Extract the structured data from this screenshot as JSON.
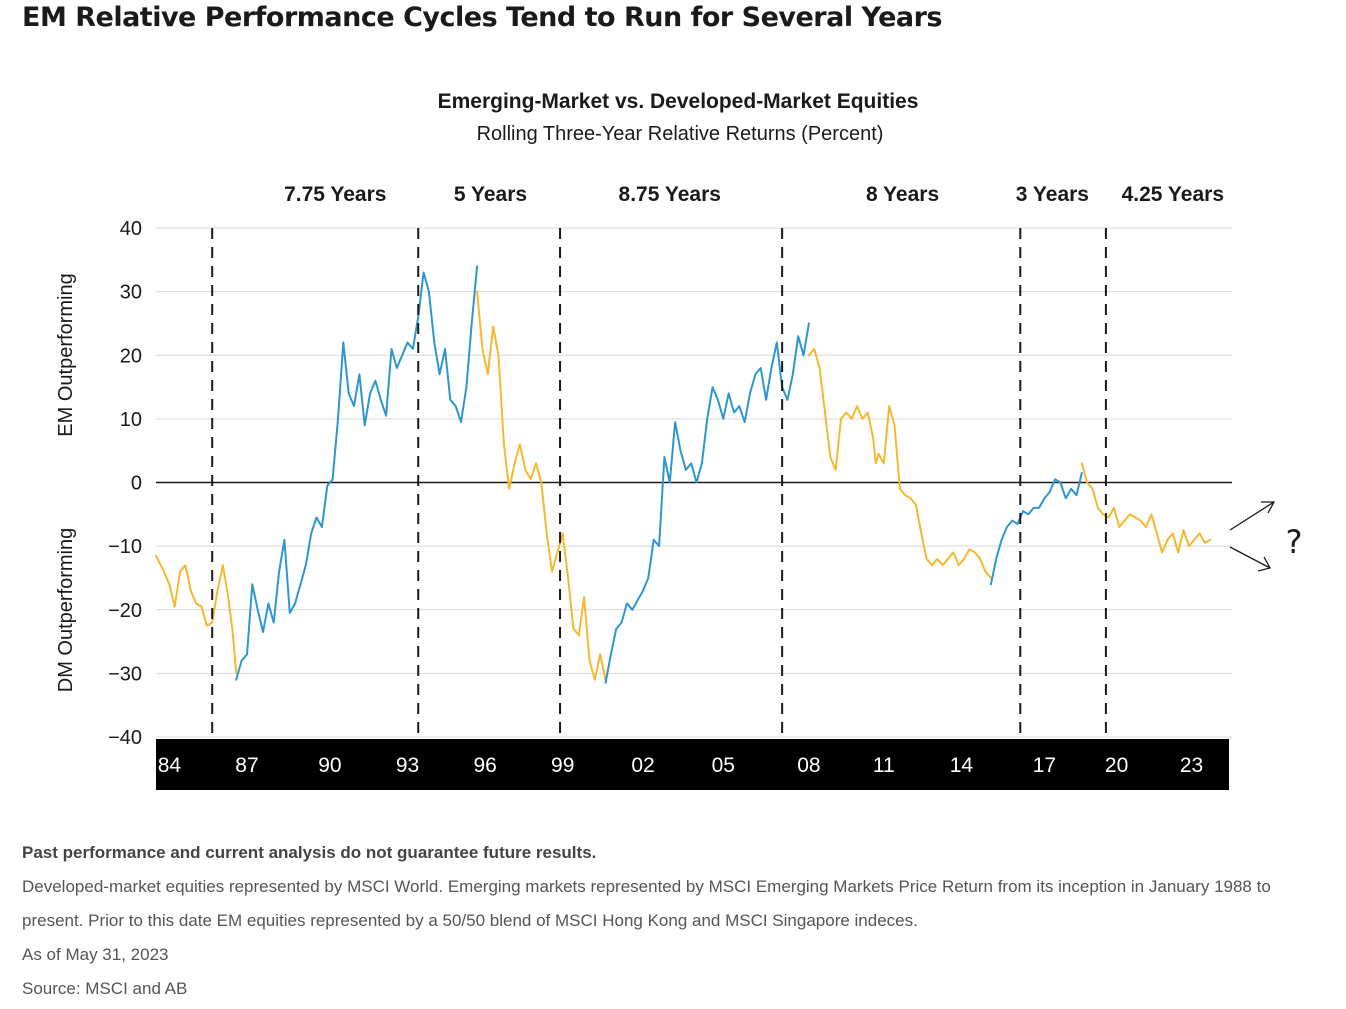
{
  "headline": "EM Relative Performance Cycles Tend to Run for Several Years",
  "chart_data": {
    "type": "line",
    "title": "Emerging-Market vs. Developed-Market Equities",
    "subtitle": "Rolling Three-Year Relative Returns (Percent)",
    "ylabel_top": "EM Outperforming",
    "ylabel_bottom": "DM Outperforming",
    "ylim": [
      -40,
      40
    ],
    "yticks": [
      {
        "value": 40,
        "label": "40"
      },
      {
        "value": 30,
        "label": "30"
      },
      {
        "value": 20,
        "label": "20"
      },
      {
        "value": 10,
        "label": "10"
      },
      {
        "value": 0,
        "label": "0"
      },
      {
        "value": -10,
        "label": "−10"
      },
      {
        "value": -20,
        "label": "−20"
      },
      {
        "value": -30,
        "label": "−30"
      },
      {
        "value": -40,
        "label": "−40"
      }
    ],
    "xlim": [
      1984.0,
      2024.1
    ],
    "xticks": [
      {
        "value": 1984.5,
        "label": "84"
      },
      {
        "value": 1987.4,
        "label": "87"
      },
      {
        "value": 1990.5,
        "label": "90"
      },
      {
        "value": 1993.4,
        "label": "93"
      },
      {
        "value": 1996.3,
        "label": "96"
      },
      {
        "value": 1999.2,
        "label": "99"
      },
      {
        "value": 2002.2,
        "label": "02"
      },
      {
        "value": 2005.2,
        "label": "05"
      },
      {
        "value": 2008.4,
        "label": "08"
      },
      {
        "value": 2011.2,
        "label": "11"
      },
      {
        "value": 2014.1,
        "label": "14"
      },
      {
        "value": 2017.2,
        "label": "17"
      },
      {
        "value": 2019.9,
        "label": "20"
      },
      {
        "value": 2022.7,
        "label": "23"
      }
    ],
    "cycle_lines": [
      1986.1,
      1993.8,
      1999.1,
      2007.4,
      2016.3,
      2019.5
    ],
    "cycle_labels": [
      {
        "label": "7.75 Years",
        "x": 1990.7
      },
      {
        "label": "5 Years",
        "x": 1996.5
      },
      {
        "label": "8.75 Years",
        "x": 2003.2
      },
      {
        "label": "8 Years",
        "x": 2011.9
      },
      {
        "label": "3 Years",
        "x": 2017.5
      },
      {
        "label": "4.25 Years",
        "x": 2022.0
      }
    ],
    "series": [
      {
        "color": "#f5b82e",
        "points": [
          [
            1984.0,
            -11.5
          ],
          [
            1984.3,
            -14
          ],
          [
            1984.5,
            -16
          ],
          [
            1984.7,
            -19.5
          ],
          [
            1984.9,
            -14
          ],
          [
            1985.1,
            -13
          ],
          [
            1985.3,
            -17
          ],
          [
            1985.5,
            -19
          ],
          [
            1985.7,
            -19.5
          ],
          [
            1985.9,
            -22.5
          ],
          [
            1986.1,
            -22
          ],
          [
            1986.3,
            -17
          ],
          [
            1986.5,
            -13
          ],
          [
            1986.7,
            -18
          ],
          [
            1986.85,
            -23
          ],
          [
            1987.0,
            -30
          ]
        ]
      },
      {
        "color": "#2e97d0",
        "points": [
          [
            1987.0,
            -31
          ],
          [
            1987.2,
            -28
          ],
          [
            1987.4,
            -27
          ],
          [
            1987.6,
            -16
          ],
          [
            1987.8,
            -20
          ],
          [
            1988.0,
            -23.5
          ],
          [
            1988.2,
            -19
          ],
          [
            1988.4,
            -22
          ],
          [
            1988.6,
            -14
          ],
          [
            1988.8,
            -9
          ],
          [
            1989.0,
            -20.5
          ],
          [
            1989.2,
            -19
          ],
          [
            1989.4,
            -16
          ],
          [
            1989.6,
            -13
          ],
          [
            1989.8,
            -8
          ],
          [
            1990.0,
            -5.5
          ],
          [
            1990.2,
            -7
          ],
          [
            1990.4,
            -0.5
          ],
          [
            1990.6,
            0.5
          ],
          [
            1990.8,
            10
          ],
          [
            1991.0,
            22
          ],
          [
            1991.2,
            14
          ],
          [
            1991.4,
            12
          ],
          [
            1991.6,
            17
          ],
          [
            1991.8,
            9
          ],
          [
            1992.0,
            14
          ],
          [
            1992.2,
            16
          ],
          [
            1992.4,
            13
          ],
          [
            1992.6,
            10.5
          ],
          [
            1992.8,
            21
          ],
          [
            1993.0,
            18
          ],
          [
            1993.2,
            20
          ],
          [
            1993.4,
            22
          ],
          [
            1993.6,
            21
          ],
          [
            1993.8,
            26
          ],
          [
            1994.0,
            33
          ],
          [
            1994.2,
            30
          ],
          [
            1994.4,
            22
          ],
          [
            1994.6,
            17
          ],
          [
            1994.8,
            21
          ],
          [
            1995.0,
            13
          ],
          [
            1995.2,
            12
          ],
          [
            1995.4,
            9.5
          ],
          [
            1995.6,
            15
          ],
          [
            1995.8,
            25
          ],
          [
            1996.0,
            34
          ]
        ]
      },
      {
        "color": "#f5b82e",
        "points": [
          [
            1996.0,
            30
          ],
          [
            1996.2,
            21
          ],
          [
            1996.4,
            17
          ],
          [
            1996.6,
            24.5
          ],
          [
            1996.8,
            20
          ],
          [
            1997.0,
            6
          ],
          [
            1997.2,
            -1
          ],
          [
            1997.4,
            3
          ],
          [
            1997.6,
            6
          ],
          [
            1997.8,
            2
          ],
          [
            1998.0,
            0.5
          ],
          [
            1998.2,
            3
          ],
          [
            1998.4,
            0
          ],
          [
            1998.6,
            -8
          ],
          [
            1998.8,
            -14
          ],
          [
            1999.0,
            -11
          ],
          [
            1999.2,
            -8
          ],
          [
            1999.4,
            -15
          ],
          [
            1999.6,
            -23
          ],
          [
            1999.8,
            -24
          ],
          [
            2000.0,
            -18
          ],
          [
            2000.2,
            -28
          ],
          [
            2000.4,
            -31
          ],
          [
            2000.6,
            -27
          ],
          [
            2000.8,
            -31
          ]
        ]
      },
      {
        "color": "#2e97d0",
        "points": [
          [
            2000.8,
            -31.5
          ],
          [
            2001.0,
            -27
          ],
          [
            2001.2,
            -23
          ],
          [
            2001.4,
            -22
          ],
          [
            2001.6,
            -19
          ],
          [
            2001.8,
            -20
          ],
          [
            2002.0,
            -18.5
          ],
          [
            2002.2,
            -17
          ],
          [
            2002.4,
            -15
          ],
          [
            2002.6,
            -9
          ],
          [
            2002.8,
            -10
          ],
          [
            2003.0,
            4
          ],
          [
            2003.2,
            0
          ],
          [
            2003.4,
            9.5
          ],
          [
            2003.6,
            5
          ],
          [
            2003.8,
            2
          ],
          [
            2004.0,
            3
          ],
          [
            2004.2,
            0
          ],
          [
            2004.4,
            3
          ],
          [
            2004.6,
            10
          ],
          [
            2004.8,
            15
          ],
          [
            2005.0,
            13
          ],
          [
            2005.2,
            10
          ],
          [
            2005.4,
            14
          ],
          [
            2005.6,
            11
          ],
          [
            2005.8,
            12
          ],
          [
            2006.0,
            9.5
          ],
          [
            2006.2,
            14
          ],
          [
            2006.4,
            17
          ],
          [
            2006.6,
            18
          ],
          [
            2006.8,
            13
          ],
          [
            2007.0,
            18
          ],
          [
            2007.2,
            22
          ],
          [
            2007.4,
            15
          ],
          [
            2007.6,
            13
          ],
          [
            2007.8,
            17
          ],
          [
            2008.0,
            23
          ],
          [
            2008.2,
            20
          ],
          [
            2008.4,
            25
          ]
        ]
      },
      {
        "color": "#f5b82e",
        "points": [
          [
            2008.4,
            20
          ],
          [
            2008.6,
            21
          ],
          [
            2008.8,
            18
          ],
          [
            2009.0,
            11
          ],
          [
            2009.2,
            4
          ],
          [
            2009.4,
            2
          ],
          [
            2009.6,
            10
          ],
          [
            2009.8,
            11
          ],
          [
            2010.0,
            10
          ],
          [
            2010.2,
            12
          ],
          [
            2010.4,
            10
          ],
          [
            2010.6,
            11
          ],
          [
            2010.8,
            7
          ],
          [
            2010.9,
            3
          ],
          [
            2011.0,
            4.5
          ],
          [
            2011.2,
            3
          ],
          [
            2011.4,
            12
          ],
          [
            2011.6,
            9
          ],
          [
            2011.8,
            -1
          ],
          [
            2012.0,
            -2
          ],
          [
            2012.2,
            -2.5
          ],
          [
            2012.4,
            -3.5
          ],
          [
            2012.6,
            -8
          ],
          [
            2012.8,
            -12
          ],
          [
            2013.0,
            -13
          ],
          [
            2013.2,
            -12
          ],
          [
            2013.4,
            -13
          ],
          [
            2013.6,
            -12
          ],
          [
            2013.8,
            -11
          ],
          [
            2014.0,
            -13
          ],
          [
            2014.2,
            -12
          ],
          [
            2014.4,
            -10.5
          ],
          [
            2014.6,
            -11
          ],
          [
            2014.8,
            -12
          ],
          [
            2015.0,
            -14
          ],
          [
            2015.2,
            -15
          ]
        ]
      },
      {
        "color": "#2e97d0",
        "points": [
          [
            2015.2,
            -16
          ],
          [
            2015.4,
            -12
          ],
          [
            2015.6,
            -9
          ],
          [
            2015.8,
            -7
          ],
          [
            2016.0,
            -6
          ],
          [
            2016.2,
            -6.5
          ],
          [
            2016.4,
            -4.5
          ],
          [
            2016.6,
            -5
          ],
          [
            2016.8,
            -4
          ],
          [
            2017.0,
            -4
          ],
          [
            2017.2,
            -2.5
          ],
          [
            2017.4,
            -1.5
          ],
          [
            2017.6,
            0.5
          ],
          [
            2017.8,
            0
          ],
          [
            2018.0,
            -2.5
          ],
          [
            2018.2,
            -1
          ],
          [
            2018.4,
            -2
          ],
          [
            2018.6,
            1.5
          ]
        ]
      },
      {
        "color": "#f5b82e",
        "points": [
          [
            2018.6,
            3
          ],
          [
            2018.8,
            0
          ],
          [
            2019.0,
            -1
          ],
          [
            2019.2,
            -4
          ],
          [
            2019.4,
            -5
          ],
          [
            2019.6,
            -5.5
          ],
          [
            2019.8,
            -4
          ],
          [
            2020.0,
            -7
          ],
          [
            2020.2,
            -6
          ],
          [
            2020.4,
            -5
          ],
          [
            2020.6,
            -5.5
          ],
          [
            2020.8,
            -6
          ],
          [
            2021.0,
            -7
          ],
          [
            2021.2,
            -5
          ],
          [
            2021.4,
            -8
          ],
          [
            2021.6,
            -11
          ],
          [
            2021.8,
            -9
          ],
          [
            2022.0,
            -8
          ],
          [
            2022.2,
            -11
          ],
          [
            2022.4,
            -7.5
          ],
          [
            2022.6,
            -10
          ],
          [
            2022.8,
            -9
          ],
          [
            2023.0,
            -8
          ],
          [
            2023.2,
            -9.5
          ],
          [
            2023.4,
            -9
          ]
        ]
      }
    ],
    "annotation": "?"
  },
  "notes": {
    "disclaimer": "Past performance and current analysis do not guarantee future results.",
    "line1": "Developed-market equities represented by MSCI World. Emerging markets represented by MSCI Emerging Markets Price Return from its inception in January 1988 to",
    "line2": "present. Prior to this date EM equities represented by a 50/50 blend of MSCI Hong Kong and MSCI Singapore indeces.",
    "as_of": "As of May 31, 2023",
    "source": "Source: MSCI and AB"
  }
}
